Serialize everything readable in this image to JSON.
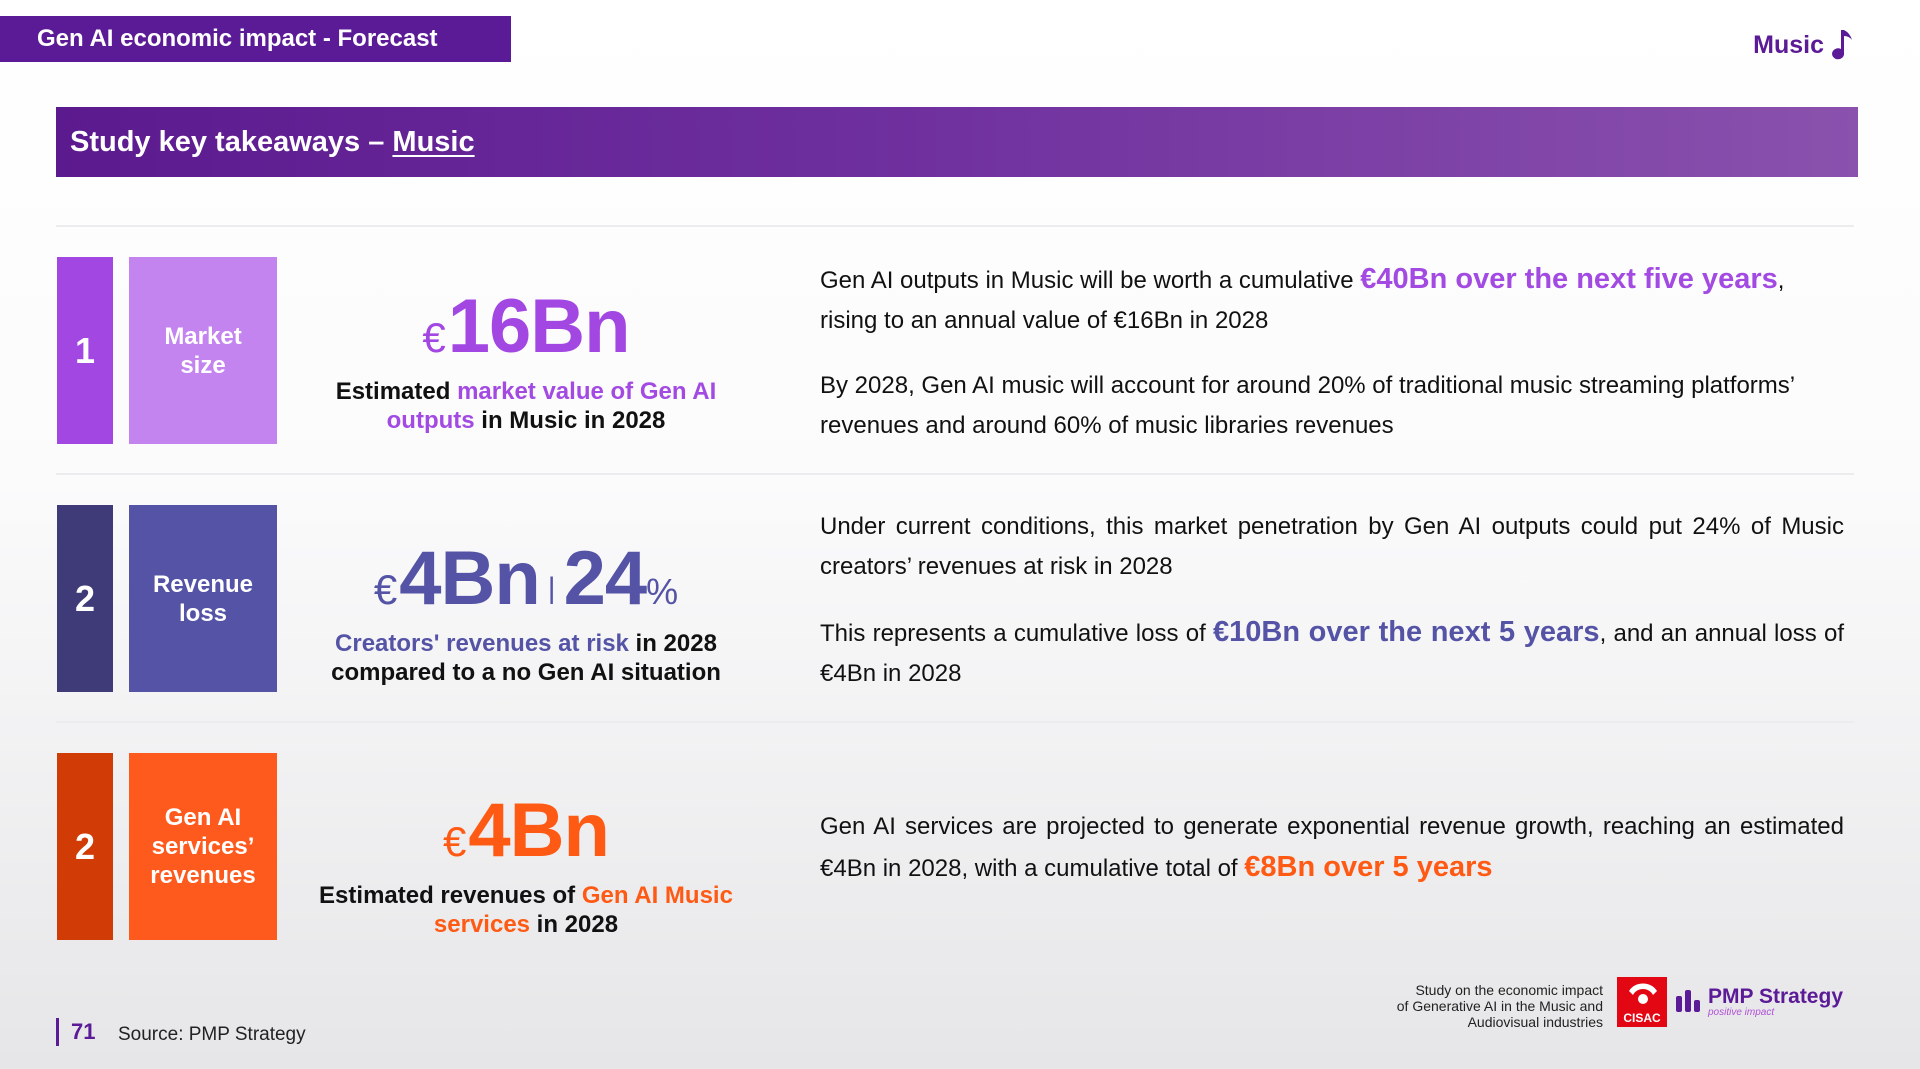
{
  "header": {
    "section_tag": "Gen AI economic impact - Forecast",
    "topic_label": "Music",
    "topic_icon": "music-note-icon"
  },
  "banner": {
    "prefix": "Study key takeaways – ",
    "topic": "Music"
  },
  "rows": [
    {
      "number": "1",
      "label": "Market size",
      "currency": "€",
      "value": "16Bn",
      "caption": {
        "pre": "Estimated ",
        "highlight": "market value of Gen AI outputs",
        "post": " in Music in 2028"
      },
      "p1": {
        "pre": "Gen AI outputs in Music will be worth a cumulative ",
        "highlight": "€40Bn over the next five years",
        "post": ", rising to an annual value of €16Bn in 2028"
      },
      "p2": "By 2028, Gen AI music will account for around 20% of traditional music streaming platforms’ revenues and around 60% of music libraries revenues",
      "colors": {
        "number_bg": "#a347e3",
        "label_bg": "#c384f0",
        "value": "#a347e3",
        "highlight": "#a24ae2"
      }
    },
    {
      "number": "2",
      "label": "Revenue loss",
      "currency": "€",
      "value": "4Bn",
      "separator": "|",
      "value2": "24",
      "value2_unit": "%",
      "caption": {
        "highlight": "Creators' revenues at risk",
        "post1": " in 2028",
        "post2": "compared to a no Gen AI situation"
      },
      "p1": "Under current conditions, this market penetration by Gen AI outputs could put 24% of Music creators’ revenues at risk  in 2028",
      "p2": {
        "pre": "This represents a cumulative loss of ",
        "highlight": "€10Bn over the next 5 years",
        "post": ", and an annual loss of €4Bn in 2028"
      },
      "colors": {
        "number_bg": "#3f3b78",
        "label_bg": "#5453a6",
        "value": "#5453a6",
        "highlight": "#5453a6"
      }
    },
    {
      "number": "2",
      "label": "Gen AI services’ revenues",
      "currency": "€",
      "value": "4Bn",
      "caption": {
        "pre": "Estimated revenues of ",
        "highlight": "Gen AI Music services",
        "post": " in 2028"
      },
      "p1": {
        "pre": "Gen AI services are projected to generate exponential revenue growth, reaching an estimated  €4Bn in 2028, with a cumulative total of ",
        "highlight": "€8Bn over 5 years"
      },
      "colors": {
        "number_bg": "#d13b06",
        "label_bg": "#ff5a1e",
        "value": "#ff5a14",
        "highlight": "#ff5a14"
      }
    }
  ],
  "footer": {
    "page_number": "71",
    "source": "Source:  PMP Strategy",
    "study_line1": "Study on the economic impact",
    "study_line2": "of Generative AI in the Music and",
    "study_line3": "Audiovisual industries",
    "cisac_logo": "CISAC",
    "pmp_name": "PMP Strategy",
    "pmp_tagline": "positive impact"
  }
}
